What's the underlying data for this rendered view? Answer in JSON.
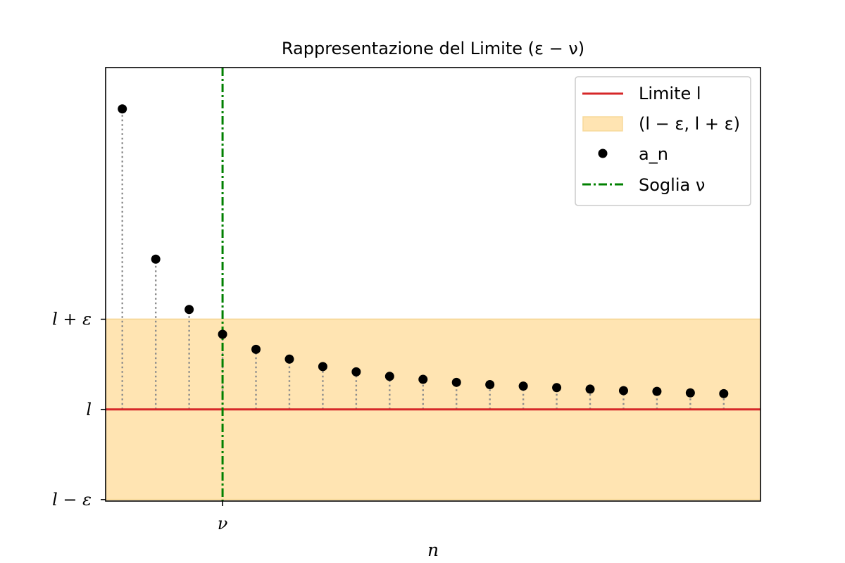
{
  "chart_data": {
    "type": "scatter",
    "title": "Rappresentazione del Limite (ε − ν)",
    "xlabel": "n",
    "ylabel": "",
    "xlim": [
      0.5,
      20.1
    ],
    "ylim": [
      -1.22,
      4.55
    ],
    "limit_value": 0,
    "epsilon": 1.2,
    "threshold_x": 4,
    "x_ticks": [
      {
        "value": 4,
        "label": "ν"
      }
    ],
    "y_ticks": [
      {
        "value": 1.2,
        "label": "l + ε"
      },
      {
        "value": 0,
        "label": "l"
      },
      {
        "value": -1.2,
        "label": "l − ε"
      }
    ],
    "series": [
      {
        "name": "a_n",
        "x": [
          1,
          2,
          3,
          4,
          5,
          6,
          7,
          8,
          9,
          10,
          11,
          12,
          13,
          14,
          15,
          16,
          17,
          18,
          19
        ],
        "y": [
          4.0,
          2.0,
          1.33,
          1.0,
          0.8,
          0.67,
          0.57,
          0.5,
          0.44,
          0.4,
          0.36,
          0.33,
          0.31,
          0.29,
          0.27,
          0.25,
          0.24,
          0.22,
          0.21
        ]
      }
    ],
    "legend": {
      "placement": "top-right",
      "entries": [
        {
          "label": "Limite l",
          "kind": "line",
          "color": "#d62728"
        },
        {
          "label": "(l − ε, l + ε)",
          "kind": "band",
          "color": "#ffe4b2"
        },
        {
          "label": "a_n",
          "kind": "marker",
          "color": "#000000"
        },
        {
          "label": "Soglia ν",
          "kind": "dashdot",
          "color": "#008000"
        }
      ]
    },
    "colors": {
      "limit": "#d62728",
      "band_fill": "#ffe4b2",
      "band_edge": "#f7d99a",
      "points": "#000000",
      "stems": "#8c8c8c",
      "threshold": "#008000"
    }
  }
}
